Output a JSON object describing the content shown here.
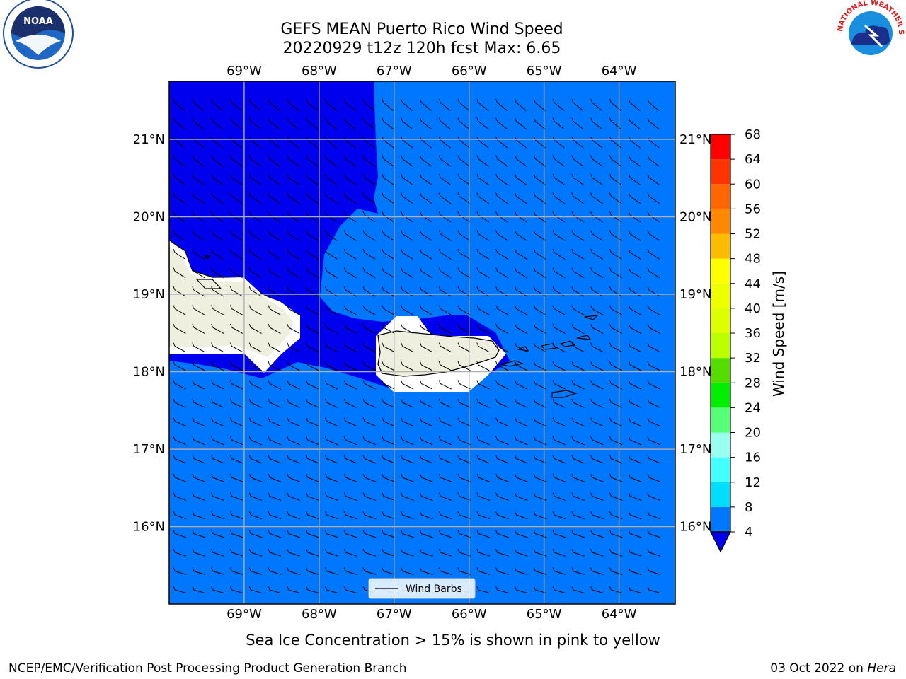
{
  "title": {
    "line1": "GEFS MEAN Puerto Rico Wind Speed",
    "line2": "20220929 t12z 120h fcst   Max: 6.65"
  },
  "logos": {
    "noaa": {
      "label": "NOAA",
      "ring_text": "NATIONAL OCEANIC AND ATMOSPHERIC ADMINISTRATION",
      "ring_text_bottom": "U.S. DEPARTMENT OF COMMERCE"
    },
    "nws": {
      "ring_text": "NATIONAL WEATHER SERVICE"
    }
  },
  "map": {
    "lon_ticks": [
      "69°W",
      "68°W",
      "67°W",
      "66°W",
      "65°W",
      "64°W"
    ],
    "lat_ticks": [
      "21°N",
      "20°N",
      "19°N",
      "18°N",
      "17°N",
      "16°N"
    ],
    "lon_values": [
      -69,
      -68,
      -67,
      -66,
      -65,
      -64
    ],
    "lat_values": [
      21,
      20,
      19,
      18,
      17,
      16
    ],
    "extent": {
      "lon_min": -70.0,
      "lon_max": -63.25,
      "lat_min": 15.0,
      "lat_max": 21.75
    },
    "colors": {
      "below_4": "#0000ee",
      "band_4_8": "#0077ff",
      "land": "#efefdf",
      "coast": "#000000",
      "grid": "#b0b0b0"
    },
    "legend_label": "Wind Barbs"
  },
  "colorbar": {
    "label": "Wind Speed [m/s]",
    "ticks": [
      "68",
      "64",
      "60",
      "56",
      "52",
      "48",
      "44",
      "40",
      "36",
      "32",
      "28",
      "24",
      "20",
      "16",
      "12",
      "8",
      "4"
    ],
    "bands": [
      {
        "from": 4,
        "to": 8,
        "color": "#0077ff"
      },
      {
        "from": 8,
        "to": 12,
        "color": "#00ddff"
      },
      {
        "from": 12,
        "to": 16,
        "color": "#44ffff"
      },
      {
        "from": 16,
        "to": 20,
        "color": "#99ffee"
      },
      {
        "from": 20,
        "to": 24,
        "color": "#55ff77"
      },
      {
        "from": 24,
        "to": 28,
        "color": "#00ee00"
      },
      {
        "from": 28,
        "to": 32,
        "color": "#55dd00"
      },
      {
        "from": 32,
        "to": 36,
        "color": "#bbff00"
      },
      {
        "from": 36,
        "to": 40,
        "color": "#ddff00"
      },
      {
        "from": 40,
        "to": 44,
        "color": "#eeff00"
      },
      {
        "from": 44,
        "to": 48,
        "color": "#ffff00"
      },
      {
        "from": 48,
        "to": 52,
        "color": "#ffbb00"
      },
      {
        "from": 52,
        "to": 56,
        "color": "#ff8800"
      },
      {
        "from": 56,
        "to": 60,
        "color": "#ff6600"
      },
      {
        "from": 60,
        "to": 64,
        "color": "#ff3300"
      },
      {
        "from": 64,
        "to": 68,
        "color": "#ff0000"
      }
    ],
    "extend_min_color": "#0000ee",
    "min": 4,
    "max": 68
  },
  "footer": {
    "sea_ice_note": "Sea Ice Concentration > 15% is shown in pink to yellow",
    "branch": "NCEP/EMC/Verification Post Processing Product Generation Branch",
    "date": "03 Oct 2022 on ",
    "machine": "Hera"
  }
}
